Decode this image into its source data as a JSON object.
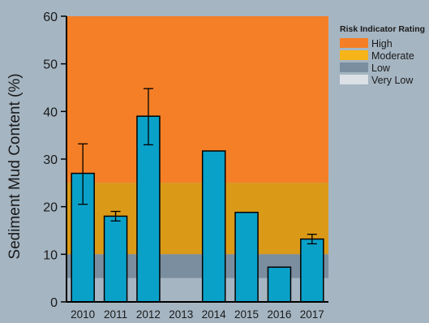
{
  "chart_data": {
    "type": "bar",
    "title": "",
    "xlabel": "",
    "ylabel": "Sediment Mud Content  (%)",
    "ylim": [
      0,
      60
    ],
    "yticks": [
      0,
      10,
      20,
      30,
      40,
      50,
      60
    ],
    "categories": [
      "2010",
      "2011",
      "2012",
      "2013",
      "2014",
      "2015",
      "2016",
      "2017"
    ],
    "values": [
      27,
      18,
      39,
      null,
      31.7,
      18.8,
      7.3,
      13.2
    ],
    "error_low": [
      20.5,
      17,
      33,
      null,
      null,
      null,
      null,
      12.2
    ],
    "error_high": [
      33.2,
      19,
      44.8,
      null,
      null,
      null,
      null,
      14.2
    ],
    "bar_color": "#0aa1c9",
    "grid": false,
    "legend_position": "top-right",
    "legend": {
      "title": "Risk Indicator Rating",
      "items": [
        {
          "label": "High",
          "color": "#f47f26"
        },
        {
          "label": "Moderate",
          "color": "#f7b418"
        },
        {
          "label": "Low",
          "color": "#7a8e9f"
        },
        {
          "label": "Very Low",
          "color": "#dbe1e6"
        }
      ]
    },
    "risk_bands": [
      {
        "rating": "High",
        "from": 25,
        "to": 60,
        "color": "#f47f26"
      },
      {
        "rating": "Moderate",
        "from": 10,
        "to": 25,
        "color": "#da9a18"
      },
      {
        "rating": "Low",
        "from": 5,
        "to": 10,
        "color": "#7a8e9f"
      },
      {
        "rating": "Very Low",
        "from": 0,
        "to": 5,
        "color": "#a5b5c2"
      }
    ]
  }
}
